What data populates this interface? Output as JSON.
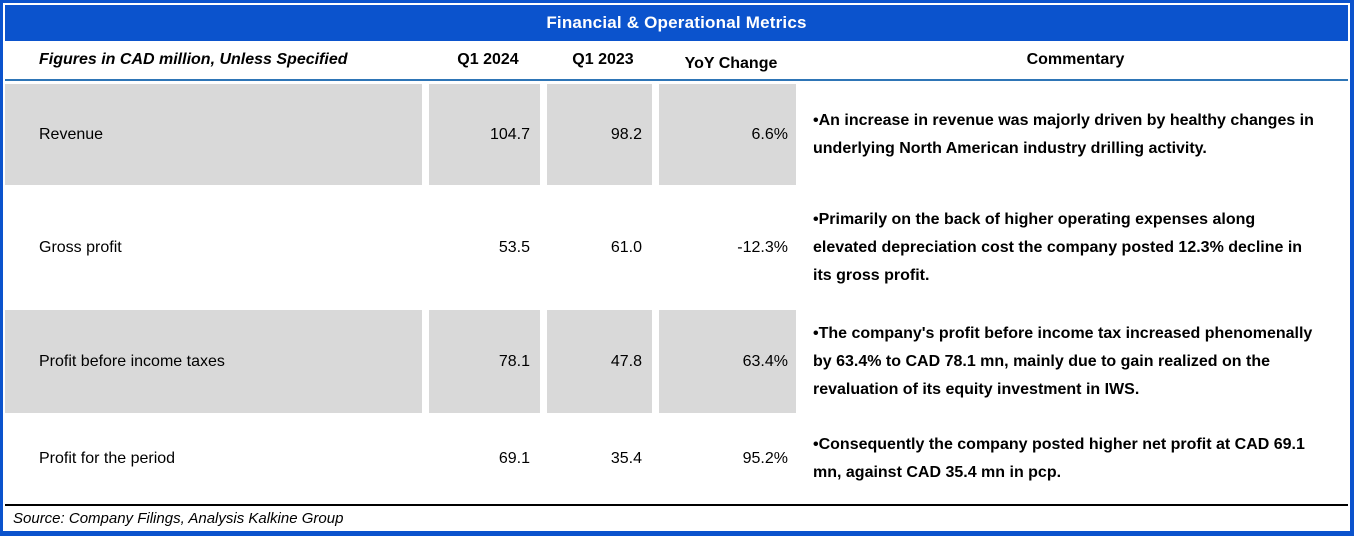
{
  "title": "Financial & Operational Metrics",
  "header": {
    "figures_label": "Figures in CAD million, Unless Specified",
    "col_q1_2024": "Q1 2024",
    "col_q1_2023": "Q1 2023",
    "col_yoy": "YoY Change",
    "col_commentary": "Commentary"
  },
  "rows": [
    {
      "metric": "Revenue",
      "q1_2024": "104.7",
      "q1_2023": "98.2",
      "yoy": "6.6%",
      "commentary": "•An increase in revenue was majorly driven by healthy changes in underlying North American industry drilling activity."
    },
    {
      "metric": "Gross profit",
      "q1_2024": "53.5",
      "q1_2023": "61.0",
      "yoy": "-12.3%",
      "commentary": "•Primarily on the back of higher operating expenses along elevated depreciation cost the company posted 12.3% decline in its gross profit."
    },
    {
      "metric": "Profit before income taxes",
      "q1_2024": "78.1",
      "q1_2023": "47.8",
      "yoy": "63.4%",
      "commentary": "•The company's profit before income tax increased phenomenally by 63.4% to CAD 78.1 mn, mainly due to gain realized on the revaluation of its equity investment in IWS."
    },
    {
      "metric": "Profit for the period",
      "q1_2024": "69.1",
      "q1_2023": "35.4",
      "yoy": "95.2%",
      "commentary": "•Consequently the company posted higher net profit at CAD 69.1 mn, against CAD 35.4 mn in pcp."
    }
  ],
  "footer": {
    "source": "Source: Company Filings, Analysis Kalkine Group"
  },
  "colors": {
    "accent_blue": "#0b53cd",
    "divider_blue": "#2e75b6",
    "row_shade": "#d9d9d9",
    "text": "#000000"
  }
}
